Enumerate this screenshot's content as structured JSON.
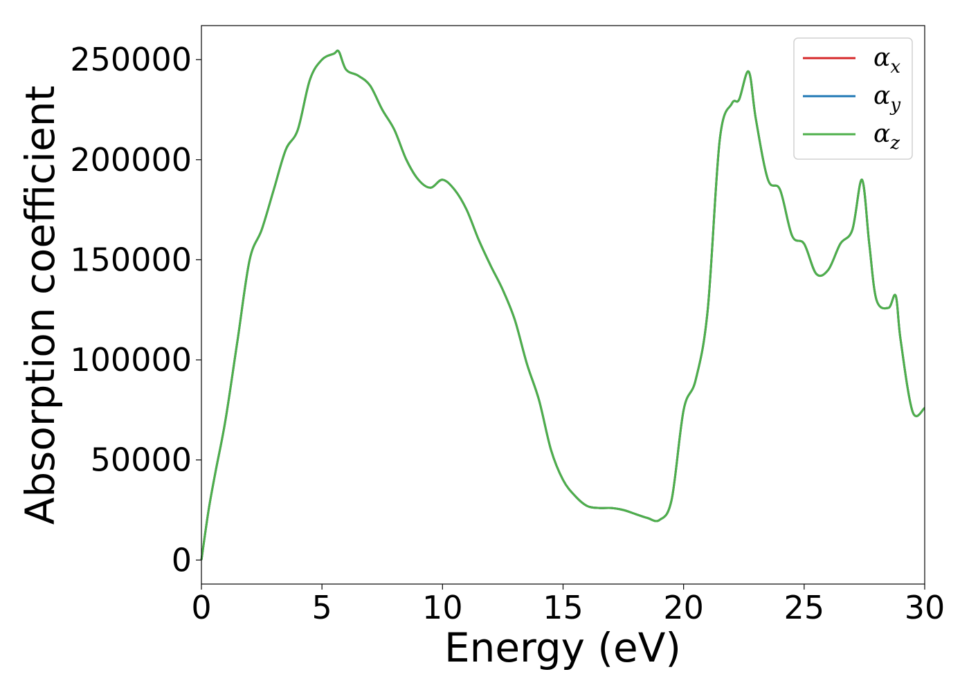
{
  "chart_data": {
    "type": "line",
    "xlabel": "Energy (eV)",
    "ylabel": "Absorption coefficient",
    "xlim": [
      0,
      30
    ],
    "ylim": [
      -12000,
      267000
    ],
    "xticks": [
      0,
      5,
      10,
      15,
      20,
      25,
      30
    ],
    "yticks": [
      0,
      50000,
      100000,
      150000,
      200000,
      250000
    ],
    "grid": false,
    "legend_position": "top-right",
    "series": [
      {
        "name": "α",
        "subscript": "x",
        "color": "#d62728",
        "x": [
          0,
          0.3,
          0.6,
          1.0,
          1.5,
          2.0,
          2.5,
          3.0,
          3.5,
          4.0,
          4.5,
          5.0,
          5.5,
          5.7,
          6.0,
          6.5,
          7.0,
          7.5,
          8.0,
          8.5,
          9.0,
          9.5,
          10.0,
          10.5,
          11.0,
          11.5,
          12.0,
          12.5,
          13.0,
          13.5,
          14.0,
          14.5,
          15.0,
          15.5,
          16.0,
          16.5,
          17.0,
          17.5,
          18.0,
          18.5,
          19.0,
          19.5,
          20.0,
          20.5,
          21.0,
          21.5,
          22.0,
          22.3,
          22.7,
          23.0,
          23.5,
          24.0,
          24.5,
          25.0,
          25.5,
          26.0,
          26.5,
          27.0,
          27.4,
          27.7,
          28.0,
          28.5,
          28.8,
          29.0,
          29.5,
          30.0
        ],
        "y": [
          0,
          25000,
          45000,
          70000,
          110000,
          150000,
          165000,
          185000,
          205000,
          215000,
          240000,
          250000,
          253000,
          254000,
          245000,
          242000,
          237000,
          225000,
          215000,
          200000,
          190000,
          186000,
          190000,
          185000,
          175000,
          160000,
          147000,
          135000,
          120000,
          98000,
          80000,
          55000,
          40000,
          32000,
          27000,
          26000,
          26000,
          25000,
          23000,
          21000,
          20000,
          30000,
          75000,
          90000,
          125000,
          210000,
          228000,
          230000,
          244000,
          220000,
          190000,
          185000,
          162000,
          158000,
          143000,
          145000,
          158000,
          165000,
          190000,
          158000,
          130000,
          126000,
          132000,
          110000,
          74000,
          76000
        ]
      },
      {
        "name": "α",
        "subscript": "y",
        "color": "#1f77b4",
        "x": [
          0,
          0.3,
          0.6,
          1.0,
          1.5,
          2.0,
          2.5,
          3.0,
          3.5,
          4.0,
          4.5,
          5.0,
          5.5,
          5.7,
          6.0,
          6.5,
          7.0,
          7.5,
          8.0,
          8.5,
          9.0,
          9.5,
          10.0,
          10.5,
          11.0,
          11.5,
          12.0,
          12.5,
          13.0,
          13.5,
          14.0,
          14.5,
          15.0,
          15.5,
          16.0,
          16.5,
          17.0,
          17.5,
          18.0,
          18.5,
          19.0,
          19.5,
          20.0,
          20.5,
          21.0,
          21.5,
          22.0,
          22.3,
          22.7,
          23.0,
          23.5,
          24.0,
          24.5,
          25.0,
          25.5,
          26.0,
          26.5,
          27.0,
          27.4,
          27.7,
          28.0,
          28.5,
          28.8,
          29.0,
          29.5,
          30.0
        ],
        "y": [
          0,
          25000,
          45000,
          70000,
          110000,
          150000,
          165000,
          185000,
          205000,
          215000,
          240000,
          250000,
          253000,
          254000,
          245000,
          242000,
          237000,
          225000,
          215000,
          200000,
          190000,
          186000,
          190000,
          185000,
          175000,
          160000,
          147000,
          135000,
          120000,
          98000,
          80000,
          55000,
          40000,
          32000,
          27000,
          26000,
          26000,
          25000,
          23000,
          21000,
          20000,
          30000,
          75000,
          90000,
          125000,
          210000,
          228000,
          230000,
          244000,
          220000,
          190000,
          185000,
          162000,
          158000,
          143000,
          145000,
          158000,
          165000,
          190000,
          158000,
          130000,
          126000,
          132000,
          110000,
          74000,
          76000
        ]
      },
      {
        "name": "α",
        "subscript": "z",
        "color": "#4daf4a",
        "x": [
          0,
          0.3,
          0.6,
          1.0,
          1.5,
          2.0,
          2.5,
          3.0,
          3.5,
          4.0,
          4.5,
          5.0,
          5.5,
          5.7,
          6.0,
          6.5,
          7.0,
          7.5,
          8.0,
          8.5,
          9.0,
          9.5,
          10.0,
          10.5,
          11.0,
          11.5,
          12.0,
          12.5,
          13.0,
          13.5,
          14.0,
          14.5,
          15.0,
          15.5,
          16.0,
          16.5,
          17.0,
          17.5,
          18.0,
          18.5,
          19.0,
          19.5,
          20.0,
          20.5,
          21.0,
          21.5,
          22.0,
          22.3,
          22.7,
          23.0,
          23.5,
          24.0,
          24.5,
          25.0,
          25.5,
          26.0,
          26.5,
          27.0,
          27.4,
          27.7,
          28.0,
          28.5,
          28.8,
          29.0,
          29.5,
          30.0
        ],
        "y": [
          0,
          25000,
          45000,
          70000,
          110000,
          150000,
          165000,
          185000,
          205000,
          215000,
          240000,
          250000,
          253000,
          254000,
          245000,
          242000,
          237000,
          225000,
          215000,
          200000,
          190000,
          186000,
          190000,
          185000,
          175000,
          160000,
          147000,
          135000,
          120000,
          98000,
          80000,
          55000,
          40000,
          32000,
          27000,
          26000,
          26000,
          25000,
          23000,
          21000,
          20000,
          30000,
          75000,
          90000,
          125000,
          210000,
          228000,
          230000,
          244000,
          220000,
          190000,
          185000,
          162000,
          158000,
          143000,
          145000,
          158000,
          165000,
          190000,
          158000,
          130000,
          126000,
          132000,
          110000,
          74000,
          76000
        ]
      }
    ]
  }
}
